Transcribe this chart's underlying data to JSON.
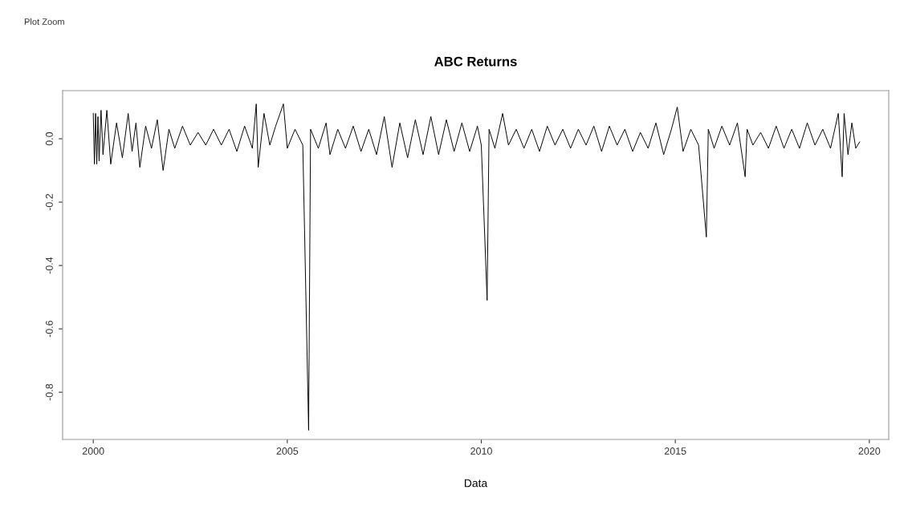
{
  "chart_data": {
    "type": "line",
    "title": "ABC Returns",
    "xlabel": "Data",
    "annotations": [
      "Plot Zoom"
    ],
    "series": [
      {
        "color": "#000000",
        "x": [
          2000.0,
          2000.03,
          2000.06,
          2000.09,
          2000.12,
          2000.15,
          2000.2,
          2000.25,
          2000.35,
          2000.45,
          2000.6,
          2000.75,
          2000.9,
          2001.0,
          2001.1,
          2001.2,
          2001.35,
          2001.5,
          2001.65,
          2001.8,
          2001.95,
          2002.1,
          2002.3,
          2002.5,
          2002.7,
          2002.9,
          2003.1,
          2003.3,
          2003.5,
          2003.7,
          2003.9,
          2004.1,
          2004.2,
          2004.25,
          2004.4,
          2004.55,
          2004.7,
          2004.9,
          2005.0,
          2005.2,
          2005.4,
          2005.55,
          2005.6,
          2005.8,
          2006.0,
          2006.1,
          2006.3,
          2006.5,
          2006.7,
          2006.9,
          2007.1,
          2007.3,
          2007.5,
          2007.7,
          2007.9,
          2008.1,
          2008.3,
          2008.5,
          2008.7,
          2008.9,
          2009.1,
          2009.3,
          2009.5,
          2009.7,
          2009.9,
          2010.0,
          2010.15,
          2010.2,
          2010.35,
          2010.55,
          2010.7,
          2010.9,
          2011.1,
          2011.3,
          2011.5,
          2011.7,
          2011.9,
          2012.1,
          2012.3,
          2012.5,
          2012.7,
          2012.9,
          2013.1,
          2013.3,
          2013.5,
          2013.7,
          2013.9,
          2014.1,
          2014.3,
          2014.5,
          2014.7,
          2014.9,
          2015.05,
          2015.2,
          2015.4,
          2015.6,
          2015.8,
          2015.85,
          2016.0,
          2016.2,
          2016.4,
          2016.6,
          2016.8,
          2016.85,
          2017.0,
          2017.2,
          2017.4,
          2017.6,
          2017.8,
          2018.0,
          2018.2,
          2018.4,
          2018.6,
          2018.8,
          2019.0,
          2019.2,
          2019.3,
          2019.35,
          2019.45,
          2019.55,
          2019.65,
          2019.75
        ],
        "values": [
          0.08,
          -0.08,
          0.08,
          -0.08,
          0.07,
          -0.07,
          0.09,
          -0.05,
          0.09,
          -0.08,
          0.05,
          -0.06,
          0.08,
          -0.04,
          0.05,
          -0.09,
          0.04,
          -0.03,
          0.06,
          -0.1,
          0.03,
          -0.03,
          0.04,
          -0.02,
          0.02,
          -0.02,
          0.03,
          -0.02,
          0.03,
          -0.04,
          0.04,
          -0.03,
          0.11,
          -0.09,
          0.08,
          -0.02,
          0.04,
          0.11,
          -0.03,
          0.03,
          -0.02,
          -0.92,
          0.03,
          -0.03,
          0.05,
          -0.05,
          0.03,
          -0.03,
          0.04,
          -0.04,
          0.03,
          -0.05,
          0.07,
          -0.09,
          0.05,
          -0.06,
          0.06,
          -0.05,
          0.07,
          -0.05,
          0.06,
          -0.04,
          0.05,
          -0.04,
          0.04,
          -0.02,
          -0.51,
          0.03,
          -0.03,
          0.08,
          -0.02,
          0.03,
          -0.03,
          0.03,
          -0.04,
          0.04,
          -0.02,
          0.03,
          -0.03,
          0.03,
          -0.02,
          0.04,
          -0.04,
          0.04,
          -0.02,
          0.03,
          -0.04,
          0.02,
          -0.03,
          0.05,
          -0.05,
          0.03,
          0.1,
          -0.04,
          0.03,
          -0.02,
          -0.31,
          0.03,
          -0.03,
          0.04,
          -0.02,
          0.05,
          -0.12,
          0.03,
          -0.02,
          0.02,
          -0.03,
          0.04,
          -0.03,
          0.03,
          -0.03,
          0.05,
          -0.02,
          0.03,
          -0.03,
          0.08,
          -0.12,
          0.08,
          -0.05,
          0.05,
          -0.03,
          -0.01
        ]
      }
    ],
    "xlim": [
      1999.21,
      2020.5
    ],
    "ylim": [
      -0.949,
      0.152
    ],
    "xticks": [
      2000,
      2005,
      2010,
      2015,
      2020
    ],
    "yticks": [
      {
        "value": 0,
        "label": "0.0"
      },
      {
        "value": -0.2,
        "label": "-0.2"
      },
      {
        "value": -0.4,
        "label": "-0.4"
      },
      {
        "value": -0.6,
        "label": "-0.6"
      },
      {
        "value": -0.8,
        "label": "-0.8"
      }
    ],
    "grid": false
  }
}
